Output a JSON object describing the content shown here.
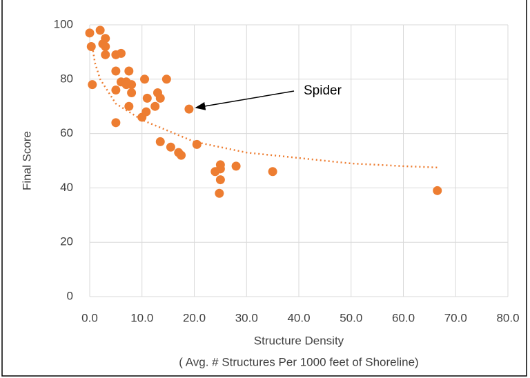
{
  "chart_data": {
    "type": "scatter",
    "y_label": "Final Score",
    "x_label": "Structure Density",
    "x_sublabel": "( Avg. # Structures Per 1000 feet of Shoreline)",
    "x": [
      0.0,
      0.3,
      0.5,
      2.0,
      2.5,
      3.0,
      3.0,
      3.0,
      5.0,
      6.0,
      5.0,
      5.0,
      5.0,
      6.0,
      7.0,
      7.0,
      7.5,
      8.0,
      8.0,
      7.5,
      10.0,
      10.5,
      11.0,
      10.8,
      12.5,
      13.0,
      13.5,
      13.5,
      14.7,
      15.5,
      17.0,
      17.5,
      19.0,
      20.5,
      24.0,
      25.0,
      25.0,
      25.0,
      24.8,
      28.0,
      35.0,
      66.5
    ],
    "values": [
      97,
      92,
      78,
      98,
      93,
      95,
      92,
      89,
      89,
      89.5,
      83,
      76,
      64,
      79,
      79,
      78,
      83,
      78,
      75,
      70,
      66,
      80,
      73,
      68,
      70,
      75,
      73,
      57,
      80,
      55,
      53,
      52,
      69,
      56,
      46,
      48.5,
      47,
      43,
      38,
      48,
      46,
      39
    ],
    "color": "#ed7d31",
    "trendline": {
      "x": [
        0.5,
        1,
        2,
        5,
        10,
        20,
        30,
        40,
        50,
        60,
        66.5
      ],
      "values": [
        92,
        86,
        80,
        71,
        65,
        57,
        53,
        51,
        49,
        48,
        47.5
      ],
      "color": "#ed7d31"
    },
    "annotation": {
      "text": "Spider",
      "x": 19.0,
      "y": 69
    },
    "xlim": [
      0,
      80
    ],
    "xticks": [
      {
        "value": 0,
        "label": "0.0"
      },
      {
        "value": 10,
        "label": "10.0"
      },
      {
        "value": 20,
        "label": "20.0"
      },
      {
        "value": 30,
        "label": "30.0"
      },
      {
        "value": 40,
        "label": "40.0"
      },
      {
        "value": 50,
        "label": "50.0"
      },
      {
        "value": 60,
        "label": "60.0"
      },
      {
        "value": 70,
        "label": "70.0"
      },
      {
        "value": 80,
        "label": "80.0"
      }
    ],
    "ylim": [
      0,
      100
    ],
    "yticks": [
      0,
      20,
      40,
      60,
      80,
      100
    ],
    "grid": true
  }
}
